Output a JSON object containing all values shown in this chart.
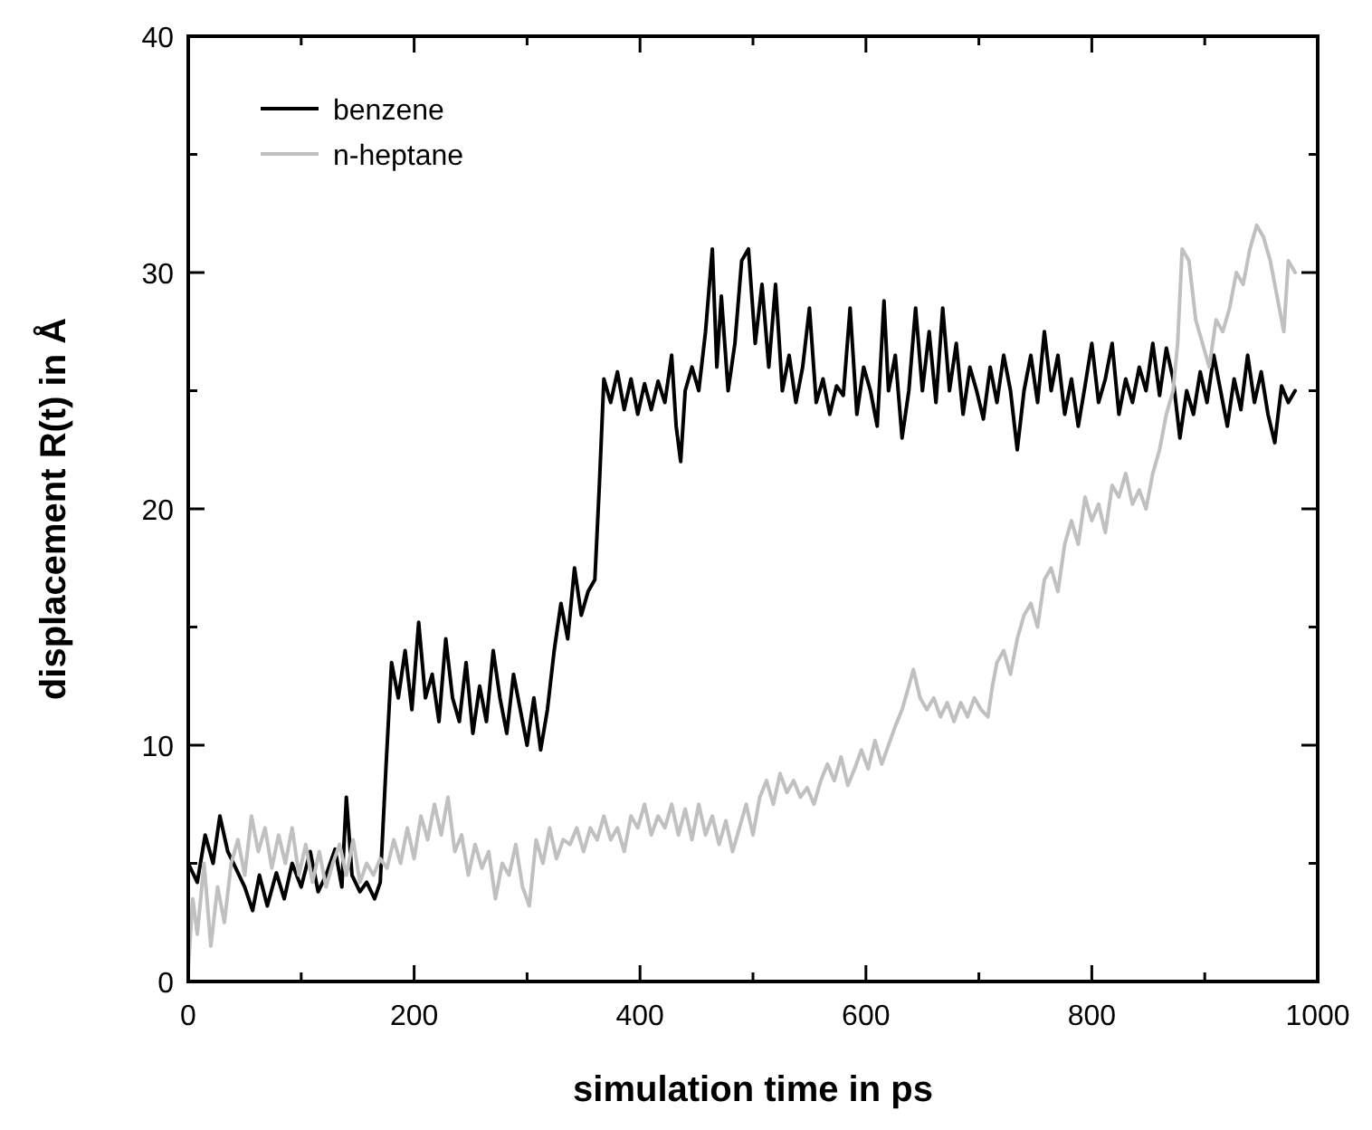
{
  "chart_data": {
    "type": "line",
    "xlabel": "simulation time in ps",
    "ylabel": "displacement R(t) in Å",
    "xlim": [
      0,
      1000
    ],
    "ylim": [
      0,
      40
    ],
    "xticks": [
      0,
      {
        "value": 100,
        "label": null
      },
      200,
      {
        "value": 300,
        "label": null
      },
      400,
      {
        "value": 500,
        "label": null
      },
      600,
      {
        "value": 700,
        "label": null
      },
      800,
      {
        "value": 900,
        "label": null
      },
      1000
    ],
    "yticks": [
      0,
      {
        "value": 5,
        "label": null
      },
      10,
      {
        "value": 15,
        "label": null
      },
      20,
      {
        "value": 25,
        "label": null
      },
      30,
      {
        "value": 35,
        "label": null
      },
      40
    ],
    "grid": false,
    "legend": "top left",
    "line_style": "solid",
    "marker": "none",
    "series": [
      {
        "name": "benzene",
        "color": "#000000",
        "x": [
          0,
          8,
          15,
          22,
          28,
          35,
          42,
          50,
          57,
          63,
          70,
          78,
          85,
          92,
          100,
          108,
          115,
          122,
          130,
          136,
          140,
          145,
          152,
          158,
          165,
          170,
          175,
          180,
          186,
          192,
          198,
          204,
          210,
          216,
          222,
          228,
          234,
          240,
          246,
          252,
          258,
          264,
          270,
          276,
          282,
          288,
          294,
          300,
          306,
          312,
          318,
          324,
          330,
          336,
          342,
          348,
          354,
          360,
          364,
          368,
          374,
          380,
          386,
          392,
          398,
          404,
          410,
          416,
          422,
          428,
          432,
          436,
          440,
          446,
          452,
          458,
          464,
          468,
          472,
          478,
          484,
          490,
          496,
          502,
          508,
          514,
          520,
          526,
          532,
          538,
          544,
          550,
          556,
          562,
          568,
          574,
          580,
          586,
          592,
          598,
          604,
          610,
          616,
          620,
          626,
          632,
          638,
          644,
          650,
          656,
          662,
          668,
          674,
          680,
          686,
          692,
          698,
          704,
          710,
          716,
          722,
          728,
          734,
          740,
          746,
          752,
          758,
          764,
          770,
          776,
          782,
          788,
          794,
          800,
          806,
          812,
          818,
          824,
          830,
          836,
          842,
          848,
          854,
          860,
          866,
          872,
          878,
          884,
          890,
          896,
          902,
          908,
          914,
          920,
          926,
          932,
          938,
          944,
          950,
          956,
          962,
          968,
          974,
          980
        ],
        "values": [
          5,
          4.2,
          6.2,
          5,
          7,
          5.5,
          4.8,
          4,
          3,
          4.5,
          3.2,
          4.6,
          3.5,
          5,
          4,
          5.5,
          3.8,
          4.5,
          5.6,
          4,
          7.8,
          4.5,
          3.8,
          4.2,
          3.5,
          4.2,
          9,
          13.5,
          12,
          14,
          11.5,
          15.2,
          12,
          13,
          11,
          14.5,
          12,
          11,
          13.5,
          10.5,
          12.5,
          11,
          14,
          12,
          10.5,
          13,
          11.5,
          10,
          12,
          9.8,
          11.5,
          14,
          16,
          14.5,
          17.5,
          15.5,
          16.5,
          17,
          21,
          25.5,
          24.5,
          25.8,
          24.2,
          25.5,
          24,
          25.3,
          24.2,
          25.4,
          24.5,
          26.5,
          23.5,
          22,
          25,
          26,
          25,
          27.5,
          31,
          26,
          29,
          25,
          27,
          30.5,
          31,
          27,
          29.5,
          26,
          29.5,
          25,
          26.5,
          24.5,
          26,
          28.5,
          24.5,
          25.5,
          24,
          25.2,
          24.8,
          28.5,
          24,
          26,
          25,
          23.5,
          28.8,
          25,
          26.5,
          23,
          25,
          28.5,
          25,
          27.5,
          24.5,
          28.5,
          25,
          27,
          24,
          26,
          25,
          23.8,
          26,
          24.5,
          26.5,
          25,
          22.5,
          25,
          26.5,
          24.5,
          27.5,
          25,
          26.5,
          24,
          25.5,
          23.5,
          25.2,
          27,
          24.5,
          25.5,
          27,
          24,
          25.5,
          24.5,
          26,
          25,
          27,
          24.8,
          26.8,
          25.5,
          23,
          25,
          24,
          25.8,
          24.5,
          26.5,
          25,
          23.5,
          25.5,
          24.2,
          26.5,
          24.5,
          25.8,
          24,
          22.8,
          25.2,
          24.5,
          25
        ]
      },
      {
        "name": "n-heptane",
        "color": "#c0c0c0",
        "x": [
          0,
          4,
          8,
          14,
          20,
          26,
          32,
          38,
          44,
          50,
          56,
          62,
          68,
          74,
          80,
          86,
          92,
          98,
          104,
          110,
          116,
          122,
          128,
          134,
          140,
          146,
          152,
          158,
          164,
          170,
          176,
          182,
          188,
          194,
          200,
          206,
          212,
          218,
          224,
          230,
          236,
          242,
          248,
          254,
          260,
          266,
          272,
          278,
          284,
          290,
          296,
          302,
          308,
          314,
          320,
          326,
          332,
          338,
          344,
          350,
          356,
          362,
          368,
          374,
          380,
          386,
          392,
          398,
          404,
          410,
          416,
          422,
          428,
          434,
          440,
          446,
          452,
          458,
          464,
          470,
          476,
          482,
          488,
          494,
          500,
          506,
          512,
          518,
          524,
          530,
          536,
          542,
          548,
          554,
          560,
          566,
          572,
          578,
          584,
          590,
          596,
          602,
          608,
          614,
          620,
          626,
          632,
          638,
          642,
          648,
          654,
          660,
          666,
          672,
          678,
          684,
          690,
          696,
          702,
          708,
          712,
          716,
          722,
          728,
          734,
          740,
          746,
          752,
          758,
          764,
          770,
          776,
          782,
          788,
          794,
          800,
          806,
          812,
          818,
          824,
          830,
          836,
          842,
          848,
          854,
          860,
          866,
          872,
          876,
          880,
          886,
          892,
          898,
          904,
          910,
          916,
          922,
          928,
          934,
          940,
          946,
          952,
          958,
          964,
          970,
          974,
          980
        ],
        "values": [
          0.5,
          3.5,
          2,
          5,
          1.5,
          4,
          2.5,
          5,
          6,
          4.5,
          7,
          5.5,
          6.5,
          4.8,
          6.2,
          5,
          6.5,
          4.5,
          5.8,
          4.2,
          5.5,
          4,
          5,
          5.8,
          4.5,
          6,
          4.2,
          5,
          4.5,
          5.2,
          4.8,
          6,
          5,
          6.5,
          5.2,
          7,
          6,
          7.5,
          6.2,
          7.8,
          5.5,
          6.2,
          4.5,
          5.8,
          4.8,
          5.5,
          3.5,
          5,
          4.5,
          5.8,
          4,
          3.2,
          6,
          5,
          6.5,
          5.2,
          6,
          5.8,
          6.5,
          5.5,
          6.5,
          6,
          7,
          6,
          6.5,
          5.5,
          7,
          6.5,
          7.5,
          6.2,
          7,
          6.5,
          7.5,
          6.2,
          7.3,
          6,
          7.5,
          6.2,
          7,
          5.8,
          6.8,
          5.5,
          6.5,
          7.5,
          6.2,
          7.8,
          8.5,
          7.5,
          8.8,
          8,
          8.5,
          7.8,
          8.2,
          7.5,
          8.5,
          9.2,
          8.5,
          9.5,
          8.3,
          9,
          9.8,
          9,
          10.2,
          9.2,
          10,
          10.8,
          11.5,
          12.5,
          13.2,
          12,
          11.5,
          12,
          11.2,
          11.8,
          11,
          11.8,
          11.2,
          12,
          11.5,
          11.2,
          12.5,
          13.5,
          14,
          13,
          14.5,
          15.5,
          16,
          15,
          17,
          17.5,
          16.5,
          18.5,
          19.5,
          18.5,
          20.5,
          19.5,
          20.2,
          19,
          21,
          20.5,
          21.5,
          20.2,
          20.8,
          20,
          21.5,
          22.5,
          24,
          25,
          27,
          31,
          30.5,
          28,
          27,
          26,
          28,
          27.5,
          28.5,
          30,
          29.5,
          31,
          32,
          31.5,
          30.5,
          29,
          27.5,
          30.5,
          30
        ]
      }
    ]
  }
}
